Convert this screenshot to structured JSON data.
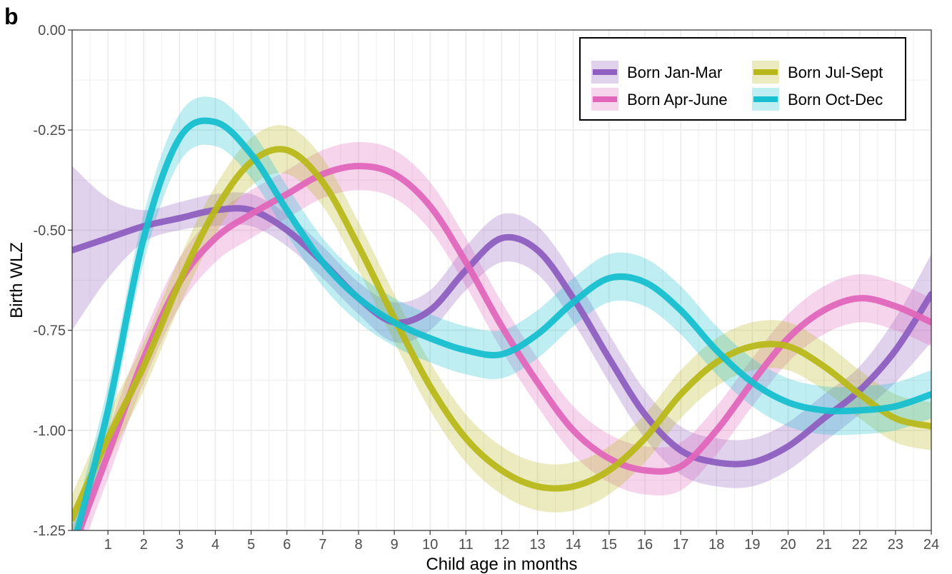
{
  "panel_label": "b",
  "chart_data": {
    "type": "line",
    "title": "",
    "xlabel": "Child age in months",
    "ylabel": "Birth WLZ",
    "xlim": [
      0,
      24
    ],
    "ylim": [
      -1.25,
      0.0
    ],
    "x_ticks": [
      1,
      2,
      3,
      4,
      5,
      6,
      7,
      8,
      9,
      10,
      11,
      12,
      13,
      14,
      15,
      16,
      17,
      18,
      19,
      20,
      21,
      22,
      23,
      24
    ],
    "y_ticks": [
      0.0,
      -0.25,
      -0.5,
      -0.75,
      -1.0,
      -1.25
    ],
    "y_tick_labels": [
      "0.00",
      "-0.25",
      "-0.50",
      "-0.75",
      "-1.00",
      "-1.25"
    ],
    "grid": true,
    "legend_position": "top-right",
    "x": [
      0,
      1,
      2,
      3,
      4,
      5,
      6,
      7,
      8,
      9,
      10,
      11,
      12,
      13,
      14,
      15,
      16,
      17,
      18,
      19,
      20,
      21,
      22,
      23,
      24
    ],
    "series": [
      {
        "name": "Born Jan-Mar",
        "color": "#8e5fc0",
        "values": [
          -0.55,
          -0.52,
          -0.49,
          -0.47,
          -0.45,
          -0.45,
          -0.5,
          -0.58,
          -0.67,
          -0.73,
          -0.7,
          -0.6,
          -0.52,
          -0.55,
          -0.67,
          -0.82,
          -0.96,
          -1.05,
          -1.08,
          -1.08,
          -1.04,
          -0.97,
          -0.9,
          -0.8,
          -0.66
        ],
        "ci_low": [
          -0.75,
          -0.62,
          -0.53,
          -0.5,
          -0.49,
          -0.49,
          -0.54,
          -0.62,
          -0.71,
          -0.78,
          -0.75,
          -0.65,
          -0.58,
          -0.61,
          -0.73,
          -0.88,
          -1.02,
          -1.11,
          -1.14,
          -1.14,
          -1.1,
          -1.03,
          -0.96,
          -0.88,
          -0.78
        ],
        "ci_high": [
          -0.34,
          -0.42,
          -0.45,
          -0.43,
          -0.41,
          -0.41,
          -0.46,
          -0.54,
          -0.63,
          -0.68,
          -0.65,
          -0.54,
          -0.46,
          -0.49,
          -0.61,
          -0.76,
          -0.9,
          -0.99,
          -1.02,
          -1.02,
          -0.98,
          -0.91,
          -0.84,
          -0.72,
          -0.56
        ]
      },
      {
        "name": "Born Apr-June",
        "color": "#e066bb",
        "values": [
          -1.3,
          -1.06,
          -0.82,
          -0.63,
          -0.52,
          -0.46,
          -0.41,
          -0.36,
          -0.34,
          -0.36,
          -0.44,
          -0.58,
          -0.74,
          -0.88,
          -1.0,
          -1.07,
          -1.1,
          -1.09,
          -1.0,
          -0.88,
          -0.77,
          -0.7,
          -0.67,
          -0.69,
          -0.73
        ]
      },
      {
        "name": "Born Jul-Sept",
        "color": "#b8b81a",
        "values": [
          -1.22,
          -1.02,
          -0.84,
          -0.63,
          -0.45,
          -0.33,
          -0.3,
          -0.38,
          -0.54,
          -0.72,
          -0.89,
          -1.02,
          -1.1,
          -1.14,
          -1.14,
          -1.1,
          -1.02,
          -0.91,
          -0.83,
          -0.79,
          -0.79,
          -0.84,
          -0.91,
          -0.97,
          -0.99
        ]
      },
      {
        "name": "Born Oct-Dec",
        "color": "#17bfcf",
        "values": [
          -1.3,
          -0.95,
          -0.52,
          -0.27,
          -0.23,
          -0.31,
          -0.45,
          -0.58,
          -0.67,
          -0.73,
          -0.77,
          -0.8,
          -0.81,
          -0.76,
          -0.68,
          -0.62,
          -0.63,
          -0.7,
          -0.8,
          -0.88,
          -0.93,
          -0.95,
          -0.95,
          -0.94,
          -0.91
        ]
      }
    ]
  }
}
